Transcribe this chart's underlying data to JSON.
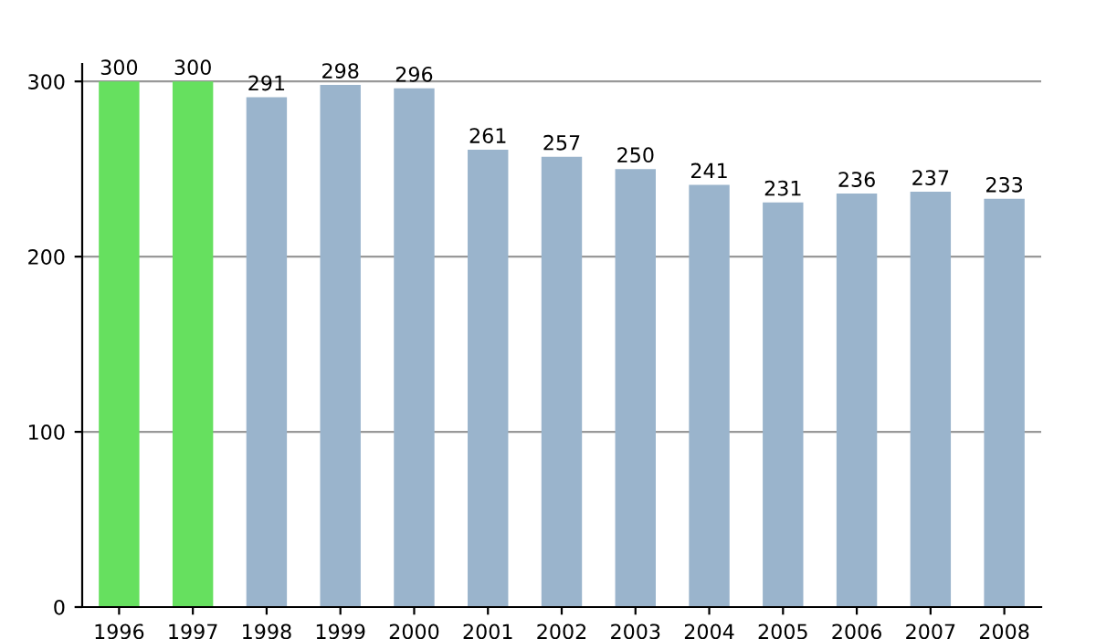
{
  "chart_data": {
    "type": "bar",
    "categories": [
      "1996",
      "1997",
      "1998",
      "1999",
      "2000",
      "2001",
      "2002",
      "2003",
      "2004",
      "2005",
      "2006",
      "2007",
      "2008"
    ],
    "values": [
      300,
      300,
      291,
      298,
      296,
      261,
      257,
      250,
      241,
      231,
      236,
      237,
      233
    ],
    "colors": [
      "#66e05f",
      "#66e05f",
      "#9ab4cc",
      "#9ab4cc",
      "#9ab4cc",
      "#9ab4cc",
      "#9ab4cc",
      "#9ab4cc",
      "#9ab4cc",
      "#9ab4cc",
      "#9ab4cc",
      "#9ab4cc",
      "#9ab4cc"
    ],
    "ylim": [
      0,
      310
    ],
    "yticks": [
      0,
      100,
      200,
      300
    ],
    "grid": "y",
    "data_labels": true
  }
}
